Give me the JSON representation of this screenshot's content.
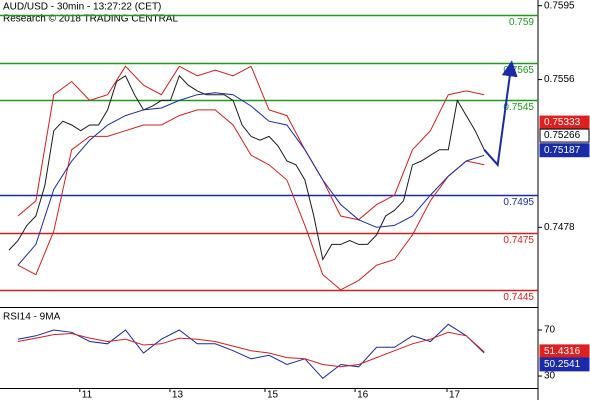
{
  "chart_data": [
    {
      "type": "line",
      "title": "AUD/USD - 30min - 13:27:22 (CET)",
      "subtitle": "Research © 2018 TRADING CENTRAL",
      "xlim": [
        0,
        120
      ],
      "ylim": [
        0.7437,
        0.7598
      ],
      "yticks": [
        0.7595,
        0.7556,
        0.7478
      ],
      "series": [
        {
          "color": "#1a1a1a",
          "x": [
            2,
            4,
            6,
            8,
            10,
            12,
            14,
            16,
            18,
            20,
            22,
            24,
            26,
            28,
            30,
            32,
            34,
            36,
            38,
            40,
            42,
            44,
            46,
            48,
            50,
            52,
            54,
            56,
            58,
            60,
            62,
            64,
            66,
            68,
            70,
            72,
            74,
            76,
            78,
            80,
            82,
            84,
            86,
            88,
            90,
            92,
            94,
            96,
            98,
            100,
            102,
            104,
            106,
            108
          ],
          "values": [
            0.7466,
            0.7471,
            0.7479,
            0.7484,
            0.75,
            0.7529,
            0.7534,
            0.7532,
            0.7529,
            0.7532,
            0.7532,
            0.754,
            0.7555,
            0.7558,
            0.7548,
            0.754,
            0.7542,
            0.7545,
            0.7545,
            0.7558,
            0.7553,
            0.755,
            0.7548,
            0.7548,
            0.7548,
            0.7545,
            0.7532,
            0.7526,
            0.7524,
            0.7526,
            0.7521,
            0.7513,
            0.7511,
            0.7503,
            0.7484,
            0.7461,
            0.7469,
            0.7469,
            0.7471,
            0.7469,
            0.7469,
            0.7474,
            0.7484,
            0.7487,
            0.7492,
            0.7511,
            0.7513,
            0.7516,
            0.7519,
            0.7519,
            0.7545,
            0.7537,
            0.7529,
            0.7519
          ]
        },
        {
          "color": "#d42020",
          "x": [
            4,
            8,
            12,
            16,
            20,
            24,
            28,
            32,
            36,
            40,
            44,
            48,
            52,
            56,
            60,
            64,
            68,
            72,
            76,
            80,
            84,
            88,
            92,
            96,
            100,
            104,
            108
          ],
          "values": [
            0.7484,
            0.7492,
            0.7548,
            0.7555,
            0.7545,
            0.7548,
            0.7563,
            0.7553,
            0.7548,
            0.7563,
            0.7558,
            0.7561,
            0.7558,
            0.7563,
            0.754,
            0.7537,
            0.7519,
            0.7503,
            0.7484,
            0.7482,
            0.749,
            0.7495,
            0.7519,
            0.7529,
            0.7548,
            0.755,
            0.7548
          ]
        },
        {
          "color": "#d42020",
          "x": [
            4,
            8,
            12,
            16,
            20,
            24,
            28,
            32,
            36,
            40,
            44,
            48,
            52,
            56,
            60,
            64,
            68,
            72,
            76,
            80,
            84,
            88,
            92,
            96,
            100,
            104,
            108
          ],
          "values": [
            0.7458,
            0.7453,
            0.7476,
            0.7519,
            0.7526,
            0.7526,
            0.7529,
            0.7532,
            0.7532,
            0.7537,
            0.754,
            0.754,
            0.7532,
            0.7516,
            0.7511,
            0.7503,
            0.7479,
            0.7453,
            0.7445,
            0.745,
            0.7458,
            0.7461,
            0.7474,
            0.7492,
            0.7505,
            0.7513,
            0.7511
          ]
        },
        {
          "color": "#1a2aa8",
          "x": [
            4,
            8,
            12,
            16,
            20,
            24,
            28,
            32,
            36,
            40,
            44,
            48,
            52,
            56,
            60,
            64,
            68,
            72,
            76,
            80,
            84,
            88,
            92,
            96,
            100,
            104,
            108
          ],
          "values": [
            0.7458,
            0.7469,
            0.7498,
            0.7513,
            0.7524,
            0.7532,
            0.7537,
            0.754,
            0.7541,
            0.7545,
            0.7548,
            0.7549,
            0.7548,
            0.7542,
            0.7534,
            0.7532,
            0.7519,
            0.7503,
            0.749,
            0.7482,
            0.7478,
            0.7479,
            0.7484,
            0.7495,
            0.7505,
            0.7513,
            0.7516
          ]
        },
        {
          "color": "#1a2aa8",
          "arrow": true,
          "x": [
            108,
            111,
            114
          ],
          "values": [
            0.7519,
            0.7511,
            0.7563
          ]
        }
      ],
      "levels": [
        {
          "value": 0.759,
          "color": "#1f9a1f"
        },
        {
          "value": 0.7565,
          "color": "#1f9a1f"
        },
        {
          "value": 0.7545,
          "color": "#1f9a1f"
        },
        {
          "value": 0.7495,
          "color": "#1a2aa8"
        },
        {
          "value": 0.7475,
          "color": "#d42020"
        },
        {
          "value": 0.7445,
          "color": "#d42020"
        }
      ],
      "price_tags": [
        {
          "value": 0.75333,
          "color": "#e02020"
        },
        {
          "value": 0.75266,
          "color": "#ffffff"
        },
        {
          "value": 0.75187,
          "color": "#1a2aa8"
        }
      ]
    },
    {
      "type": "line",
      "title": "RSI14 - 9MA",
      "xlim": [
        0,
        120
      ],
      "ylim": [
        19.6,
        87.4
      ],
      "yticks": [
        70,
        30
      ],
      "xticks": [
        {
          "value": 17.8,
          "label": "11"
        },
        {
          "value": 37.9,
          "label": "13"
        },
        {
          "value": 59.1,
          "label": "15"
        },
        {
          "value": 79.2,
          "label": "16"
        },
        {
          "value": 99.7,
          "label": "17"
        }
      ],
      "series": [
        {
          "color": "#1a2aa8",
          "x": [
            4,
            8,
            12,
            16,
            20,
            24,
            28,
            32,
            36,
            40,
            44,
            48,
            52,
            56,
            60,
            64,
            68,
            72,
            76,
            80,
            84,
            88,
            92,
            96,
            100,
            104,
            108
          ],
          "values": [
            62,
            65,
            70,
            68,
            60,
            58,
            70,
            50,
            62,
            70,
            58,
            58,
            52,
            45,
            48,
            40,
            45,
            28,
            40,
            38,
            55,
            55,
            65,
            60,
            75,
            65,
            50
          ]
        },
        {
          "color": "#d42020",
          "x": [
            4,
            8,
            12,
            16,
            20,
            24,
            28,
            32,
            36,
            40,
            44,
            48,
            52,
            56,
            60,
            64,
            68,
            72,
            76,
            80,
            84,
            88,
            92,
            96,
            100,
            104,
            108
          ],
          "values": [
            60,
            63,
            66,
            67,
            63,
            60,
            62,
            57,
            58,
            63,
            62,
            60,
            56,
            52,
            50,
            46,
            45,
            40,
            38,
            40,
            46,
            52,
            58,
            62,
            68,
            65,
            51
          ]
        }
      ],
      "value_tags": [
        {
          "value": 51.4316,
          "color": "#e02020"
        },
        {
          "value": 50.2541,
          "color": "#1a2aa8"
        }
      ]
    }
  ]
}
